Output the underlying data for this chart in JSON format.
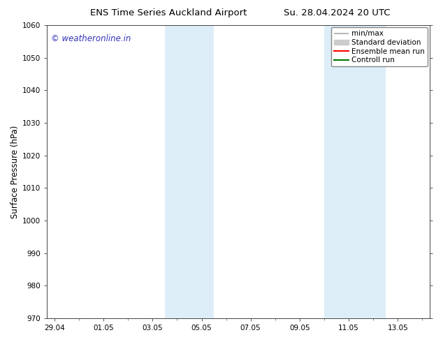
{
  "title_left": "ENS Time Series Auckland Airport",
  "title_right": "Su. 28.04.2024 20 UTC",
  "ylabel": "Surface Pressure (hPa)",
  "ylim": [
    970,
    1060
  ],
  "yticks": [
    970,
    980,
    990,
    1000,
    1010,
    1020,
    1030,
    1040,
    1050,
    1060
  ],
  "xtick_labels": [
    "29.04",
    "01.05",
    "03.05",
    "05.05",
    "07.05",
    "09.05",
    "11.05",
    "13.05"
  ],
  "xtick_positions": [
    0,
    2,
    4,
    6,
    8,
    10,
    12,
    14
  ],
  "shaded_bands": [
    {
      "x_start": 4.5,
      "x_end": 6.5
    },
    {
      "x_start": 11.0,
      "x_end": 13.5
    }
  ],
  "watermark": "© weatheronline.in",
  "watermark_color": "#3333bb",
  "background_color": "#ffffff",
  "plot_bg_color": "#ffffff",
  "shade_color": "#ddeef8",
  "legend_items": [
    {
      "label": "min/max",
      "color": "#aaaaaa",
      "lw": 1.2
    },
    {
      "label": "Standard deviation",
      "color": "#cccccc",
      "lw": 7
    },
    {
      "label": "Ensemble mean run",
      "color": "#ff0000",
      "lw": 1.5
    },
    {
      "label": "Controll run",
      "color": "#007700",
      "lw": 1.5
    }
  ],
  "x_min": -0.3,
  "x_max": 15.3,
  "title_fontsize": 9.5,
  "ylabel_fontsize": 8.5,
  "tick_fontsize": 7.5,
  "watermark_fontsize": 8.5,
  "legend_fontsize": 7.5
}
